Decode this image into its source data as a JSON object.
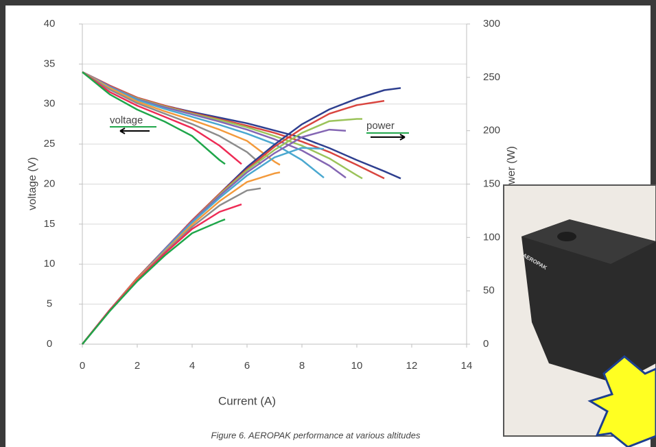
{
  "chart_data": {
    "type": "line",
    "x_label": "Current (A)",
    "y_label": "voltage (V)",
    "y2_label": "power (W)",
    "caption": "Figure 6. AEROPAK performance at various altitudes",
    "annotations": [
      "voltage",
      "power"
    ],
    "xlim": [
      0,
      14
    ],
    "xticks": [
      0,
      2,
      4,
      6,
      8,
      10,
      12,
      14
    ],
    "ylim": [
      0,
      40
    ],
    "yticks": [
      0,
      5,
      10,
      15,
      20,
      25,
      30,
      35,
      40
    ],
    "y2lim": [
      0,
      300
    ],
    "y2ticks": [
      0,
      50,
      100,
      150,
      200,
      250,
      300
    ],
    "grid": true,
    "series": [
      {
        "color": "#2e3f8f",
        "x": [
          0,
          1,
          2,
          3,
          4,
          5,
          6,
          7,
          8,
          9,
          10,
          11,
          11.6
        ],
        "values": [
          34,
          32.3,
          30.8,
          29.8,
          29,
          28.3,
          27.6,
          26.7,
          25.8,
          24.5,
          23,
          21.6,
          20.7
        ]
      },
      {
        "color": "#d9453f",
        "x": [
          0,
          1,
          2,
          3,
          4,
          5,
          6,
          7,
          8,
          9,
          10,
          11
        ],
        "values": [
          34,
          32.3,
          30.8,
          29.8,
          28.9,
          28.1,
          27.3,
          26.4,
          25.3,
          24,
          22.4,
          20.7
        ]
      },
      {
        "color": "#9bc35a",
        "x": [
          0,
          1,
          2,
          3,
          4,
          5,
          6,
          7,
          8,
          9,
          10,
          10.2
        ],
        "values": [
          34,
          32.2,
          30.7,
          29.7,
          28.8,
          28,
          27.1,
          26,
          24.8,
          23.2,
          21.1,
          20.7
        ]
      },
      {
        "color": "#8466b3",
        "x": [
          0,
          1,
          2,
          3,
          4,
          5,
          6,
          7,
          8,
          9,
          9.6
        ],
        "values": [
          34,
          32.2,
          30.6,
          29.6,
          28.7,
          27.8,
          26.8,
          25.6,
          24.2,
          22.3,
          20.8
        ]
      },
      {
        "color": "#4aa8d0",
        "x": [
          0,
          1,
          2,
          3,
          4,
          5,
          6,
          7,
          8,
          8.8
        ],
        "values": [
          34,
          32.1,
          30.5,
          29.4,
          28.4,
          27.4,
          26.3,
          25,
          23,
          20.8
        ]
      },
      {
        "color": "#f39a3c",
        "x": [
          0,
          1,
          2,
          3,
          4,
          5,
          6,
          7,
          7.2
        ],
        "values": [
          34,
          32,
          30.3,
          29.1,
          28,
          26.8,
          25.4,
          22.8,
          22.4
        ]
      },
      {
        "color": "#8c8c8c",
        "x": [
          0,
          1,
          2,
          3,
          4,
          5,
          6,
          6.5
        ],
        "values": [
          34,
          31.8,
          30.1,
          28.8,
          27.5,
          26,
          24,
          22.5
        ]
      },
      {
        "color": "#ee2b55",
        "x": [
          0,
          1,
          2,
          3,
          4,
          5,
          5.8
        ],
        "values": [
          34,
          31.5,
          29.8,
          28.4,
          27,
          24.8,
          22.5
        ]
      },
      {
        "color": "#1fa64a",
        "x": [
          0,
          1,
          2,
          3,
          4,
          5,
          5.2
        ],
        "values": [
          34,
          31.2,
          29.3,
          27.8,
          26,
          23,
          22.5
        ]
      },
      {
        "color": "#2e3f8f",
        "axis": "y2",
        "x": [
          0,
          1,
          2,
          3,
          4,
          5,
          6,
          7,
          8,
          9,
          10,
          11,
          11.6
        ],
        "values": [
          0,
          32,
          62,
          89,
          116,
          141,
          166,
          187,
          206,
          220,
          230,
          238,
          240
        ]
      },
      {
        "color": "#d9453f",
        "axis": "y2",
        "x": [
          0,
          1,
          2,
          3,
          4,
          5,
          6,
          7,
          8,
          9,
          10,
          11
        ],
        "values": [
          0,
          32,
          62,
          89,
          116,
          141,
          164,
          185,
          202,
          216,
          224,
          228
        ]
      },
      {
        "color": "#9bc35a",
        "axis": "y2",
        "x": [
          0,
          1,
          2,
          3,
          4,
          5,
          6,
          7,
          8,
          9,
          10,
          10.2
        ],
        "values": [
          0,
          32,
          61,
          89,
          115,
          140,
          163,
          182,
          198,
          209,
          211,
          211
        ]
      },
      {
        "color": "#8466b3",
        "axis": "y2",
        "x": [
          0,
          1,
          2,
          3,
          4,
          5,
          6,
          7,
          8,
          9,
          9.6
        ],
        "values": [
          0,
          32,
          61,
          89,
          115,
          139,
          161,
          179,
          194,
          201,
          200
        ]
      },
      {
        "color": "#4aa8d0",
        "axis": "y2",
        "x": [
          0,
          1,
          2,
          3,
          4,
          5,
          6,
          7,
          8,
          8.8
        ],
        "values": [
          0,
          32,
          61,
          88,
          114,
          137,
          158,
          175,
          184,
          183
        ]
      },
      {
        "color": "#f39a3c",
        "axis": "y2",
        "x": [
          0,
          1,
          2,
          3,
          4,
          5,
          6,
          7,
          7.2
        ],
        "values": [
          0,
          32,
          61,
          87,
          112,
          134,
          152,
          160,
          161
        ]
      },
      {
        "color": "#8c8c8c",
        "axis": "y2",
        "x": [
          0,
          1,
          2,
          3,
          4,
          5,
          6,
          6.5
        ],
        "values": [
          0,
          32,
          60,
          86,
          110,
          130,
          144,
          146
        ]
      },
      {
        "color": "#ee2b55",
        "axis": "y2",
        "x": [
          0,
          1,
          2,
          3,
          4,
          5,
          5.8
        ],
        "values": [
          0,
          32,
          60,
          85,
          108,
          124,
          131
        ]
      },
      {
        "color": "#1fa64a",
        "axis": "y2",
        "x": [
          0,
          1,
          2,
          3,
          4,
          5,
          5.2
        ],
        "values": [
          0,
          31,
          59,
          83,
          104,
          115,
          117
        ]
      }
    ]
  },
  "photo": {
    "label": "AEROPAK"
  }
}
